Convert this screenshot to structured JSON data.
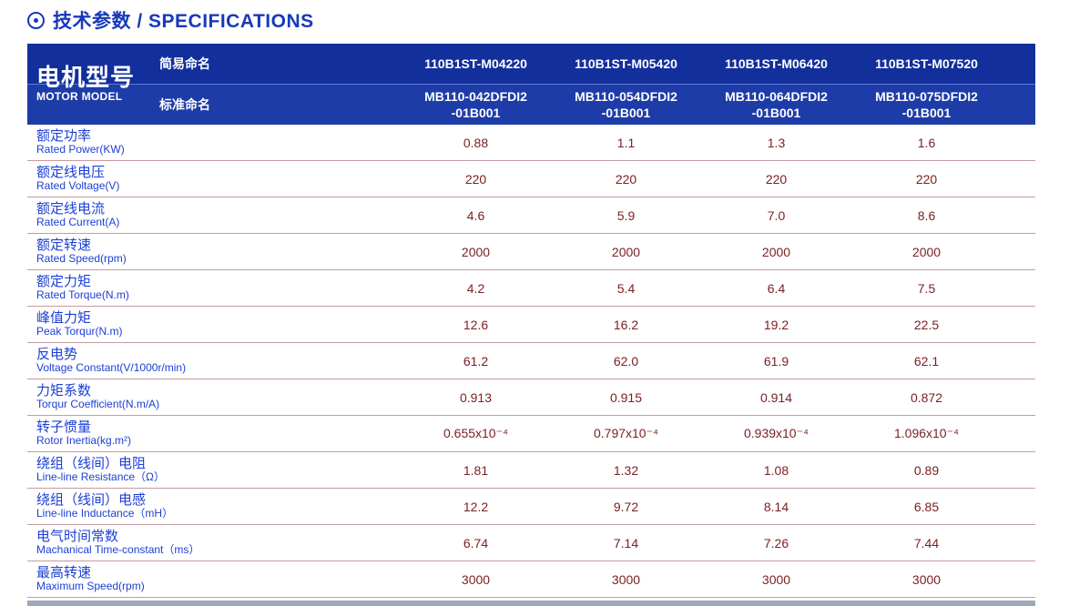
{
  "page_title": {
    "icon": "circle-dot-icon",
    "text": "技术参数 / SPECIFICATIONS"
  },
  "colors": {
    "title_blue": "#1839b8",
    "header_navy_top": "#122f9c",
    "header_navy_bottom": "#1d3ca7",
    "header_divider": "#5d7ad4",
    "label_blue": "#1c3fd4",
    "value_maroon": "#7c2022",
    "row_divider_pink": "#c59ba0"
  },
  "table": {
    "header": {
      "row_title_cn": "电机型号",
      "row_title_en": "MOTOR MODEL",
      "simple_name_label": "简易命名",
      "standard_name_label": "标准命名",
      "simple_names": [
        "110B1ST-M04220",
        "110B1ST-M05420",
        "110B1ST-M06420",
        "110B1ST-M07520"
      ],
      "standard_names": [
        "MB110-042DFDI2\n-01B001",
        "MB110-054DFDI2\n-01B001",
        "MB110-064DFDI2\n-01B001",
        "MB110-075DFDI2\n-01B001"
      ]
    },
    "rows": [
      {
        "label_cn": "额定功率",
        "label_en": "Rated Power(KW)",
        "values": [
          "0.88",
          "1.1",
          "1.3",
          "1.6"
        ]
      },
      {
        "label_cn": "额定线电压",
        "label_en": "Rated Voltage(V)",
        "values": [
          "220",
          "220",
          "220",
          "220"
        ]
      },
      {
        "label_cn": "额定线电流",
        "label_en": "Rated Current(A)",
        "values": [
          "4.6",
          "5.9",
          "7.0",
          "8.6"
        ]
      },
      {
        "label_cn": "额定转速",
        "label_en": "Rated Speed(rpm)",
        "values": [
          "2000",
          "2000",
          "2000",
          "2000"
        ]
      },
      {
        "label_cn": "额定力矩",
        "label_en": "Rated Torque(N.m)",
        "values": [
          "4.2",
          "5.4",
          "6.4",
          "7.5"
        ]
      },
      {
        "label_cn": "峰值力矩",
        "label_en": "Peak Torqur(N.m)",
        "values": [
          "12.6",
          "16.2",
          "19.2",
          "22.5"
        ]
      },
      {
        "label_cn": "反电势",
        "label_en": "Voltage Constant(V/1000r/min)",
        "values": [
          "61.2",
          "62.0",
          "61.9",
          "62.1"
        ]
      },
      {
        "label_cn": "力矩系数",
        "label_en": "Torqur Coefficient(N.m/A)",
        "values": [
          "0.913",
          "0.915",
          "0.914",
          "0.872"
        ]
      },
      {
        "label_cn": "转子惯量",
        "label_en": "Rotor Inertia(kg.m²)",
        "values": [
          "0.655x10⁻⁴",
          "0.797x10⁻⁴",
          "0.939x10⁻⁴",
          "1.096x10⁻⁴"
        ]
      },
      {
        "label_cn": "绕组（线间）电阻",
        "label_en": "Line-line Resistance（Ω）",
        "values": [
          "1.81",
          "1.32",
          "1.08",
          "0.89"
        ]
      },
      {
        "label_cn": "绕组（线间）电感",
        "label_en": "Line-line Inductance（mH）",
        "values": [
          "12.2",
          "9.72",
          "8.14",
          "6.85"
        ]
      },
      {
        "label_cn": "电气时间常数",
        "label_en": "Machanical Time-constant（ms）",
        "values": [
          "6.74",
          "7.14",
          "7.26",
          "7.44"
        ]
      },
      {
        "label_cn": "最高转速",
        "label_en": "Maximum Speed(rpm)",
        "values": [
          "3000",
          "3000",
          "3000",
          "3000"
        ]
      }
    ]
  }
}
